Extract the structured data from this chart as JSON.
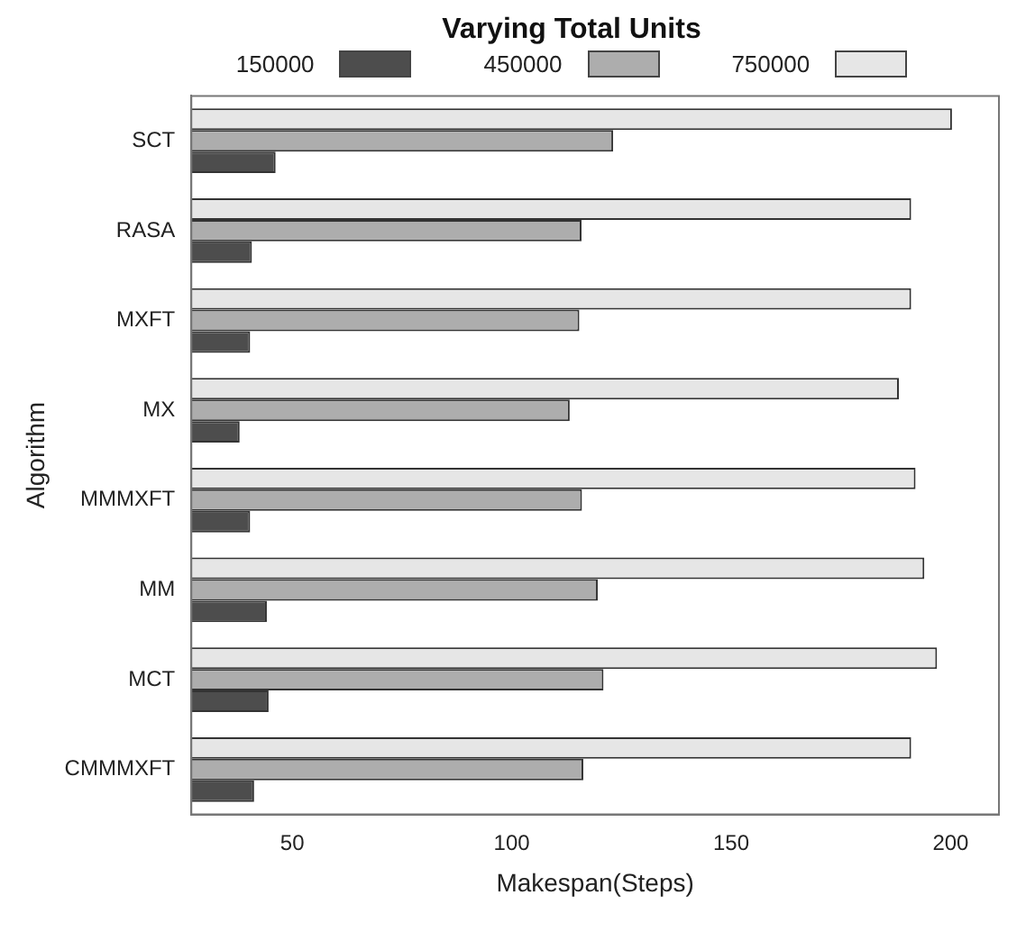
{
  "chart_data": {
    "type": "bar",
    "orientation": "horizontal",
    "legend_title": "Varying Total Units",
    "xlabel": "Makespan(Steps)",
    "ylabel": "Algorithm",
    "categories": [
      "SCT",
      "RASA",
      "MXFT",
      "MX",
      "MMMXFT",
      "MM",
      "MCT",
      "CMMMXFT"
    ],
    "series": [
      {
        "name": "150000",
        "color": "#4d4d4d",
        "values": [
          46.2,
          40.8,
          40.4,
          38,
          40.4,
          44.2,
          44.6,
          41.3
        ]
      },
      {
        "name": "450000",
        "color": "#adadad",
        "values": [
          123.1,
          115.9,
          115.4,
          113.2,
          116,
          119.6,
          120.9,
          116.3
        ]
      },
      {
        "name": "750000",
        "color": "#e6e6e6",
        "values": [
          200.3,
          191,
          191,
          188.2,
          192,
          194,
          196.9,
          191
        ]
      }
    ],
    "xlim": [
      27,
      211
    ],
    "xticks": [
      50,
      100,
      150,
      200
    ],
    "grid": false,
    "legend": "top"
  }
}
